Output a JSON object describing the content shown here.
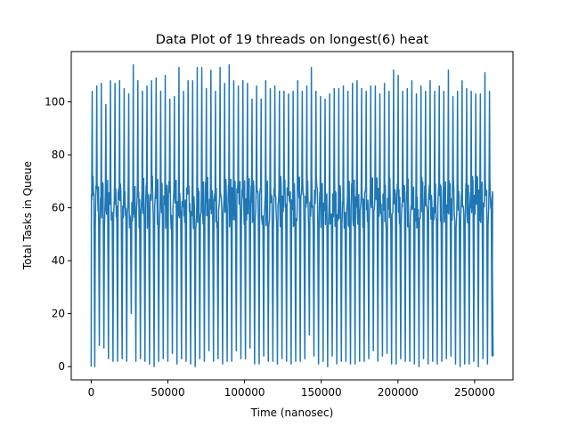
{
  "chart_data": {
    "type": "line",
    "title": "Data Plot of 19 threads on longest(6) heat",
    "xlabel": "Time (nanosec)",
    "ylabel": "Total Tasks in Queue",
    "xlim": [
      -13000,
      275000
    ],
    "ylim": [
      -5,
      119
    ],
    "x_ticks": [
      0,
      50000,
      100000,
      150000,
      200000,
      250000
    ],
    "x_tick_labels": [
      "0",
      "50000",
      "100000",
      "150000",
      "200000",
      "250000"
    ],
    "y_ticks": [
      0,
      20,
      40,
      60,
      80,
      100
    ],
    "y_tick_labels": [
      "0",
      "20",
      "40",
      "60",
      "80",
      "100"
    ],
    "grid": false,
    "series": [
      {
        "color": "#1f77b4",
        "x_start": 0,
        "x_end": 262000,
        "start_value": 0,
        "end_value": 4,
        "peaks": [
          104,
          106,
          107,
          99,
          108,
          107,
          108,
          105,
          103,
          114,
          108,
          104,
          106,
          108,
          109,
          104,
          110,
          101,
          102,
          113,
          104,
          108,
          108,
          113,
          113,
          105,
          112,
          104,
          113,
          107,
          114,
          108,
          106,
          108,
          107,
          101,
          106,
          101,
          108,
          105,
          106,
          104,
          104,
          103,
          104,
          108,
          104,
          106,
          113,
          104,
          102,
          101,
          103,
          105,
          105,
          106,
          104,
          107,
          108,
          105,
          104,
          106,
          106,
          103,
          107,
          104,
          112,
          110,
          104,
          105,
          108,
          103,
          106,
          104,
          108,
          104,
          106,
          104,
          112,
          102,
          104,
          108,
          105,
          104,
          103,
          103,
          111,
          104
        ],
        "troughs": [
          0,
          8,
          7,
          3,
          2,
          2,
          3,
          2,
          20,
          2,
          3,
          2,
          1,
          0,
          2,
          3,
          2,
          5,
          1,
          3,
          2,
          1,
          0,
          3,
          2,
          6,
          2,
          3,
          1,
          2,
          2,
          6,
          3,
          3,
          7,
          1,
          1,
          4,
          2,
          2,
          1,
          3,
          2,
          1,
          2,
          2,
          3,
          12,
          4,
          1,
          2,
          0,
          4,
          1,
          2,
          2,
          1,
          1,
          2,
          2,
          3,
          6,
          2,
          4,
          5,
          1,
          1,
          3,
          2,
          2,
          1,
          0,
          3,
          1,
          2,
          1,
          2,
          3,
          4,
          1,
          0,
          1,
          1,
          2,
          0,
          3,
          1,
          4
        ]
      }
    ]
  }
}
